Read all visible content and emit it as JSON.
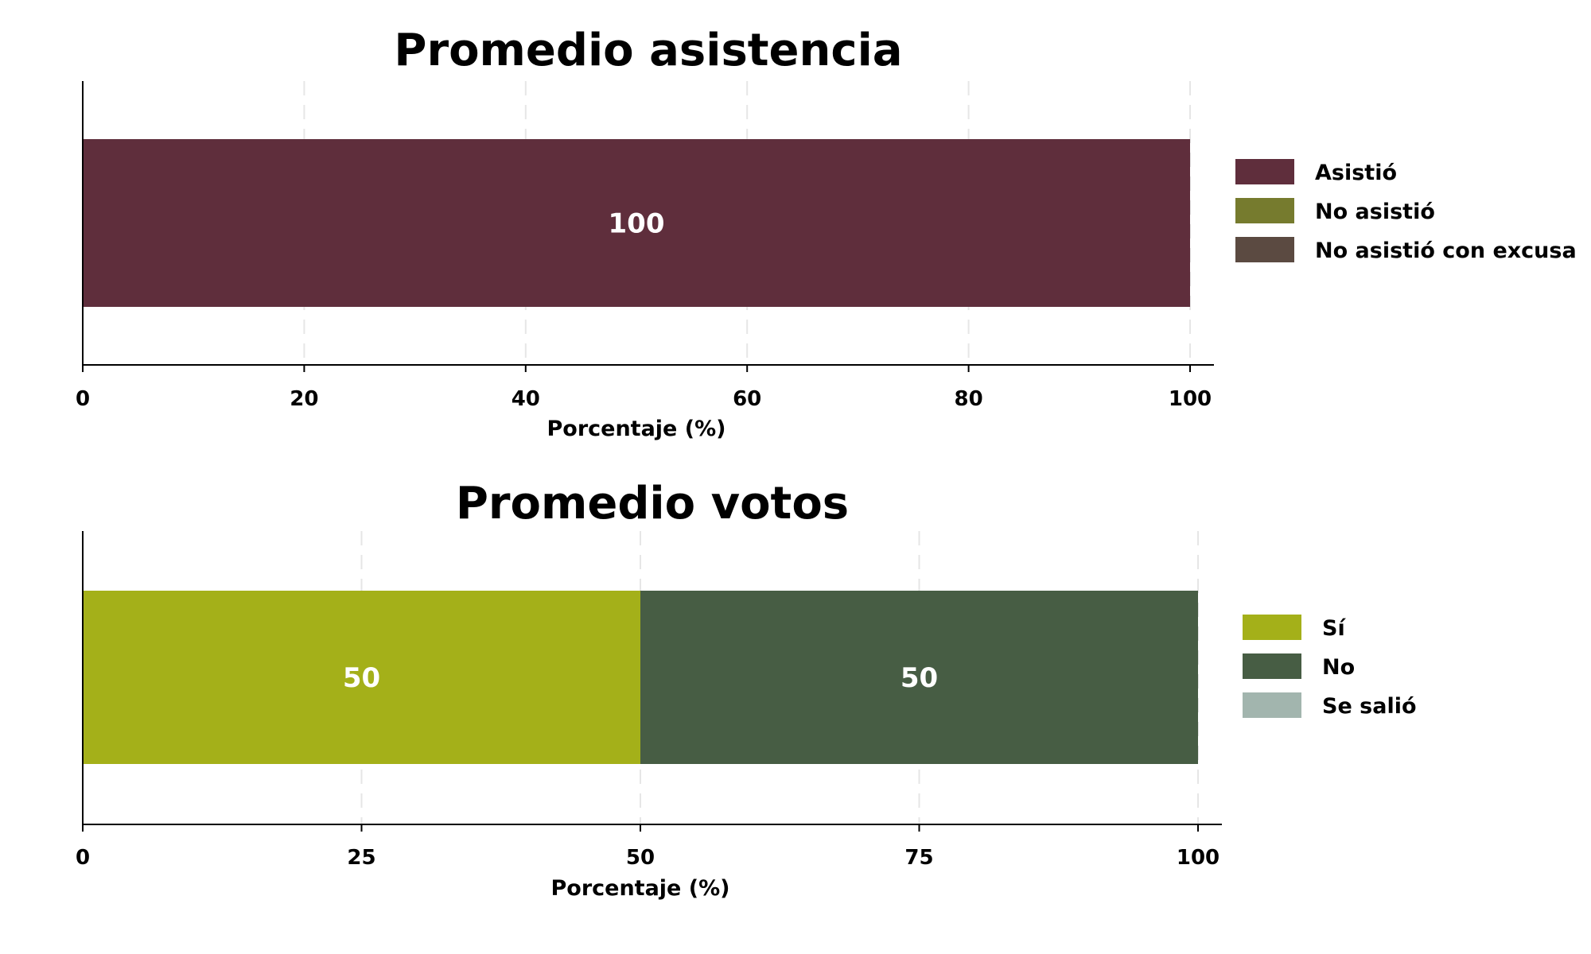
{
  "chart_data": [
    {
      "type": "bar",
      "orientation": "horizontal",
      "stacked": true,
      "title": "Promedio asistencia",
      "xlabel": "Porcentaje (%)",
      "ylabel": "",
      "xlim": [
        0,
        100
      ],
      "xticks": [
        0,
        20,
        40,
        60,
        80,
        100
      ],
      "xtick_labels": [
        "0",
        "20",
        "40",
        "60",
        "80",
        "100"
      ],
      "grid": true,
      "legend_position": "right",
      "series": [
        {
          "name": "Asistió",
          "values": [
            100
          ],
          "color": "#5f2e3c"
        },
        {
          "name": "No asistió",
          "values": [
            0
          ],
          "color": "#767b2e"
        },
        {
          "name": "No asistió con excusa",
          "values": [
            0
          ],
          "color": "#5b4a41"
        }
      ]
    },
    {
      "type": "bar",
      "orientation": "horizontal",
      "stacked": true,
      "title": "Promedio votos",
      "xlabel": "Porcentaje (%)",
      "ylabel": "",
      "xlim": [
        0,
        100
      ],
      "xticks": [
        0,
        25,
        50,
        75,
        100
      ],
      "xtick_labels": [
        "0",
        "25",
        "50",
        "75",
        "100"
      ],
      "grid": true,
      "legend_position": "right",
      "series": [
        {
          "name": "Sí",
          "values": [
            50
          ],
          "color": "#a4b019"
        },
        {
          "name": "No",
          "values": [
            50
          ],
          "color": "#475d44"
        },
        {
          "name": "Se salió",
          "values": [
            0
          ],
          "color": "#a2b5ae"
        }
      ]
    }
  ]
}
